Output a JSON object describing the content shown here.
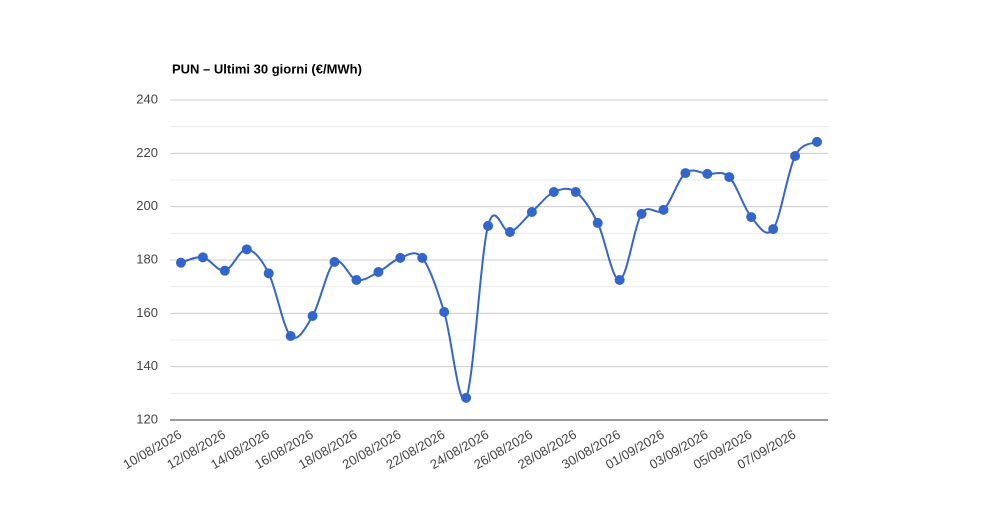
{
  "chart_data": {
    "type": "line",
    "title": "PUN – Ultimi 30 giorni (€/MWh)",
    "categories": [
      "10/08/2026",
      null,
      "12/08/2026",
      null,
      "14/08/2026",
      null,
      "16/08/2026",
      null,
      "18/08/2026",
      null,
      "20/08/2026",
      null,
      "22/08/2026",
      null,
      "24/08/2026",
      null,
      "26/08/2026",
      null,
      "28/08/2026",
      null,
      "30/08/2026",
      null,
      "01/09/2026",
      null,
      "03/09/2026",
      null,
      "05/09/2026",
      null,
      "07/09/2026",
      null
    ],
    "values": [
      179,
      181,
      176,
      184,
      175,
      151.5,
      159,
      179.3,
      172.5,
      175.5,
      180.8,
      180.8,
      160.5,
      128.3,
      192.8,
      190.5,
      198,
      205.5,
      205.5,
      193.9,
      172.5,
      197.3,
      198.8,
      212.6,
      212.3,
      211.1,
      196.1,
      191.6,
      219,
      224.3
    ],
    "color": "#3366cc",
    "ylim": [
      120,
      240
    ],
    "yticks": [
      120,
      140,
      160,
      180,
      200,
      220,
      240
    ],
    "minor_yticks": [
      130,
      150,
      170,
      190,
      210,
      230
    ],
    "grid": true,
    "smooth": true
  }
}
